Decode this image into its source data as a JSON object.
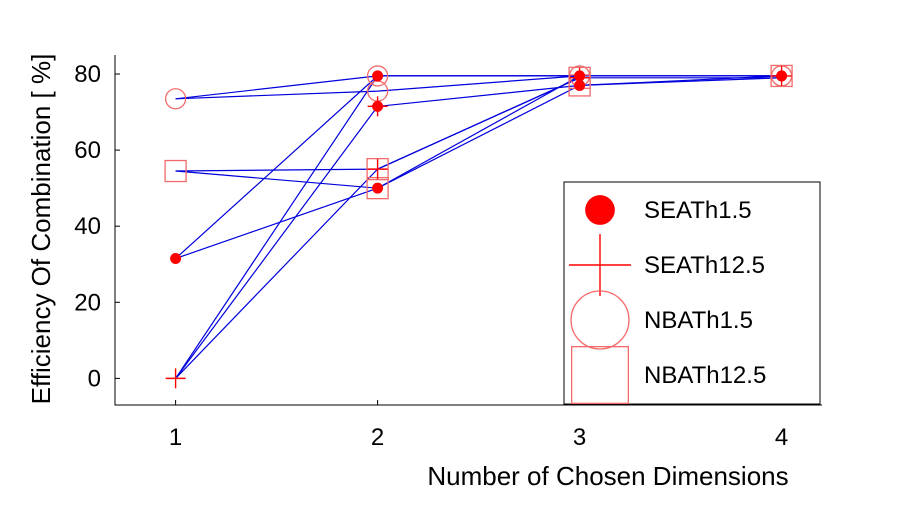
{
  "chart_data": {
    "type": "line",
    "title": "",
    "xlabel": "Number of Chosen Dimensions",
    "ylabel": "Efficiency Of Combination [ %]",
    "xlim": [
      0.7,
      4.2
    ],
    "ylim": [
      -7,
      85
    ],
    "xticks": [
      1,
      2,
      3,
      4
    ],
    "yticks": [
      0,
      20,
      40,
      60,
      80
    ],
    "grid": false,
    "legend_position": "lower-right",
    "colors": {
      "line": "#0000dd",
      "marker": "#ff0000",
      "marker_light": "#f26a6a"
    },
    "legend": [
      {
        "label": "SEATh1.5",
        "marker": "filled-circle"
      },
      {
        "label": "SEATh12.5",
        "marker": "plus"
      },
      {
        "label": "NBATh1.5",
        "marker": "open-circle"
      },
      {
        "label": "NBATh12.5",
        "marker": "open-square"
      }
    ],
    "series": [
      {
        "marker": "open-circle",
        "points": [
          [
            1,
            73.5
          ],
          [
            2,
            79.5
          ],
          [
            3,
            79.5
          ],
          [
            4,
            79.5
          ]
        ]
      },
      {
        "marker": "open-circle",
        "points": [
          [
            1,
            73.5
          ],
          [
            2,
            75.5
          ],
          [
            3,
            79.5
          ]
        ]
      },
      {
        "marker": "open-square",
        "points": [
          [
            1,
            54.5
          ],
          [
            2,
            55
          ],
          [
            3,
            79
          ],
          [
            4,
            79
          ]
        ]
      },
      {
        "marker": "open-square",
        "points": [
          [
            1,
            54.5
          ],
          [
            2,
            50
          ],
          [
            3,
            77
          ],
          [
            4,
            79
          ]
        ]
      },
      {
        "marker": "filled-circle",
        "points": [
          [
            1,
            31.5
          ],
          [
            2,
            79.5
          ],
          [
            3,
            79.5
          ],
          [
            4,
            79.5
          ]
        ]
      },
      {
        "marker": "filled-circle",
        "points": [
          [
            1,
            31.5
          ],
          [
            2,
            50
          ],
          [
            3,
            79.5
          ]
        ]
      },
      {
        "marker": "plus",
        "points": [
          [
            1,
            0
          ],
          [
            2,
            79.5
          ],
          [
            3,
            79.5
          ],
          [
            4,
            79.5
          ]
        ]
      },
      {
        "marker": "plus",
        "points": [
          [
            1,
            0
          ],
          [
            2,
            71.5
          ],
          [
            3,
            77
          ],
          [
            4,
            79.5
          ]
        ]
      },
      {
        "marker": "plus",
        "points": [
          [
            1,
            0
          ],
          [
            2,
            55
          ],
          [
            3,
            79
          ]
        ]
      }
    ],
    "markers": [
      {
        "type": "open-circle",
        "x": 1,
        "y": 73.5
      },
      {
        "type": "open-square",
        "x": 1,
        "y": 54.5
      },
      {
        "type": "filled-circle",
        "x": 1,
        "y": 31.5
      },
      {
        "type": "plus",
        "x": 1,
        "y": 0
      },
      {
        "type": "open-circle",
        "x": 2,
        "y": 79.5
      },
      {
        "type": "open-circle",
        "x": 2,
        "y": 75.5
      },
      {
        "type": "filled-circle",
        "x": 2,
        "y": 79.5
      },
      {
        "type": "filled-circle",
        "x": 2,
        "y": 71.5
      },
      {
        "type": "plus",
        "x": 2,
        "y": 71.5
      },
      {
        "type": "open-square",
        "x": 2,
        "y": 55
      },
      {
        "type": "plus",
        "x": 2,
        "y": 55
      },
      {
        "type": "open-square",
        "x": 2,
        "y": 50
      },
      {
        "type": "filled-circle",
        "x": 2,
        "y": 50
      },
      {
        "type": "open-square",
        "x": 3,
        "y": 79
      },
      {
        "type": "open-square",
        "x": 3,
        "y": 77
      },
      {
        "type": "open-circle",
        "x": 3,
        "y": 79.5
      },
      {
        "type": "plus",
        "x": 3,
        "y": 79
      },
      {
        "type": "filled-circle",
        "x": 3,
        "y": 79.5
      },
      {
        "type": "filled-circle",
        "x": 3,
        "y": 77
      },
      {
        "type": "open-square",
        "x": 4,
        "y": 79.5
      },
      {
        "type": "open-circle",
        "x": 4,
        "y": 79.5
      },
      {
        "type": "plus",
        "x": 4,
        "y": 79.5
      },
      {
        "type": "filled-circle",
        "x": 4,
        "y": 79.5
      }
    ]
  }
}
